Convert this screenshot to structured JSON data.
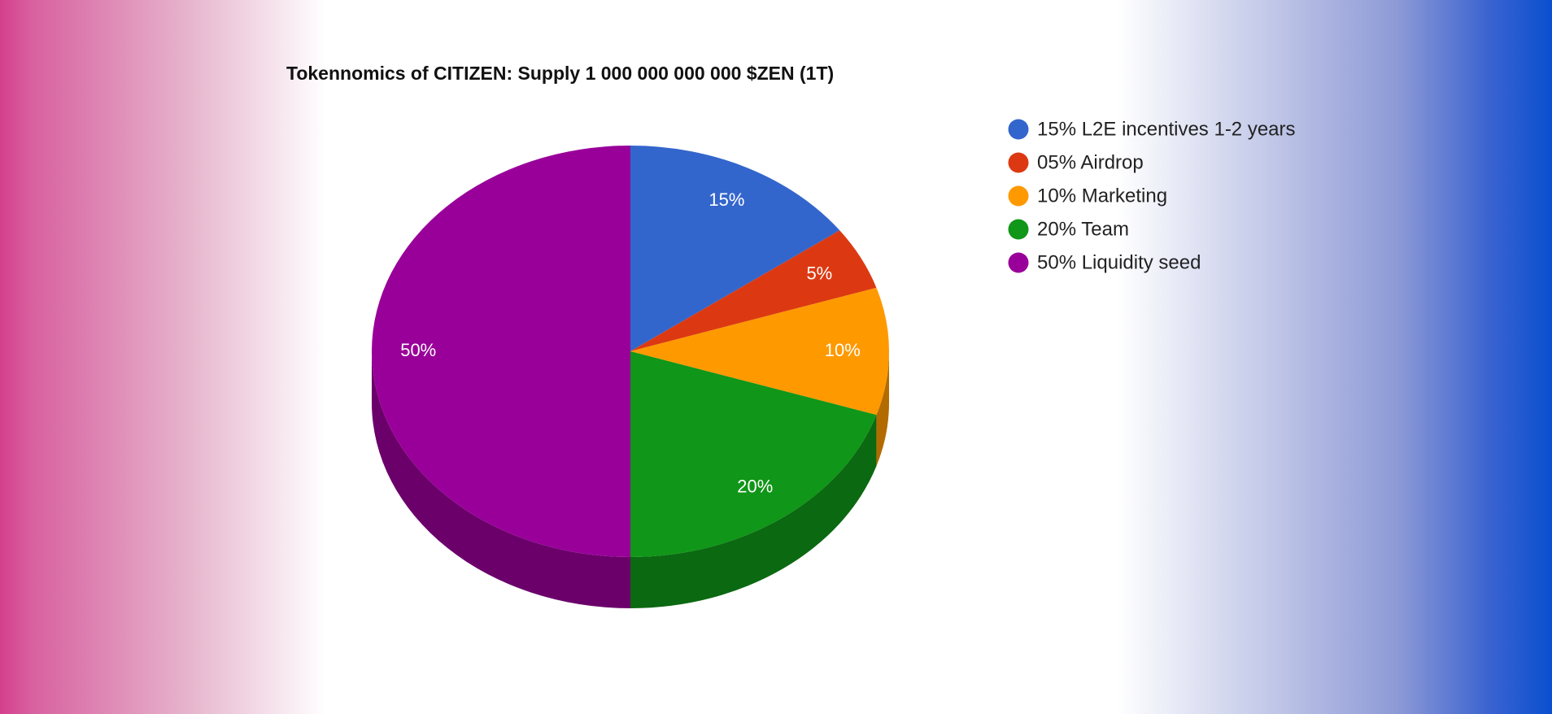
{
  "chart_data": {
    "type": "pie",
    "is3D": true,
    "title": "Tokennomics of CITIZEN: Supply 1 000 000 000 000 $ZEN (1T)",
    "categories": [
      "15% L2E incentives 1-2 years",
      "05% Airdrop",
      "10% Marketing",
      "20% Team",
      "50% Liquidity seed"
    ],
    "values": [
      15,
      5,
      10,
      20,
      50
    ],
    "value_labels": [
      "15%",
      "5%",
      "10%",
      "20%",
      "50%"
    ],
    "colors": [
      "#3366cc",
      "#dc3912",
      "#ff9900",
      "#109618",
      "#990099"
    ],
    "legend": "right"
  }
}
